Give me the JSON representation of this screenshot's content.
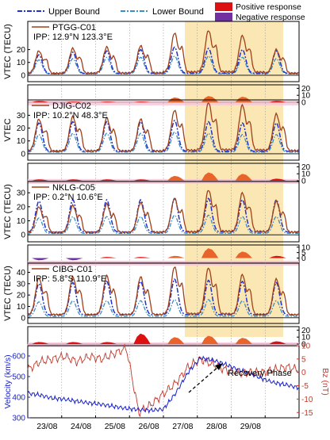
{
  "legend": {
    "upper_bound": "Upper Bound",
    "lower_bound": "Lower Bound",
    "positive": "Positive response",
    "negative": "Negative response"
  },
  "colors": {
    "vtec": "#a0401a",
    "upper": "#2233cc",
    "lower": "#3a8fc0",
    "positive": "#dd1111",
    "positive_shaded": "#e8642a",
    "negative": "#7030a0",
    "recovery_shade": "#fbe7b4",
    "velocity": "#1a22cc",
    "bz": "#c0392b",
    "residual_band": "#f6c6d8"
  },
  "chart_data": [
    {
      "type": "line",
      "station": "PTGG-C01",
      "ipp": "IPP: 12.9°N 123.3°E",
      "ylabel": "VTEC (TECU)",
      "yticks": [
        0,
        10,
        20
      ],
      "ylim": [
        -5,
        42
      ],
      "residual_yticks": [
        0,
        10,
        20
      ],
      "residual_ylim": [
        0,
        25
      ],
      "peaks": [
        19,
        21,
        22,
        23,
        33,
        35,
        31,
        20
      ],
      "upper_peaks": [
        16,
        18,
        19,
        20,
        22,
        21,
        20,
        19
      ],
      "lower_peaks": [
        12,
        13,
        14,
        14,
        15,
        15,
        14,
        13
      ],
      "residual_peaks": [
        2,
        1,
        1,
        1,
        7,
        9,
        8,
        2
      ]
    },
    {
      "type": "line",
      "station": "DJIG-C02",
      "ipp": "IPP: 10.2°N 48.3°E",
      "ylabel": "VTEC",
      "yticks": [
        0,
        10,
        20,
        30
      ],
      "ylim": [
        -5,
        42
      ],
      "residual_yticks": [
        0,
        10,
        20
      ],
      "residual_ylim": [
        0,
        25
      ],
      "peaks": [
        27,
        29,
        28,
        27,
        34,
        40,
        38,
        31
      ],
      "upper_peaks": [
        24,
        25,
        25,
        25,
        26,
        25,
        24,
        24
      ],
      "lower_peaks": [
        15,
        16,
        16,
        16,
        17,
        16,
        15,
        15
      ],
      "residual_peaks": [
        2,
        2,
        2,
        2,
        7,
        12,
        10,
        3
      ]
    },
    {
      "type": "line",
      "station": "NKLG-C05",
      "ipp": "IPP: 0.2°N 10.6°E",
      "ylabel": "VTEC (TECU)",
      "yticks": [
        0,
        10,
        20,
        30
      ],
      "ylim": [
        -5,
        38
      ],
      "residual_yticks": [
        0,
        5,
        10
      ],
      "residual_ylim": [
        -4,
        12
      ],
      "peaks": [
        20,
        21,
        22,
        23,
        26,
        32,
        30,
        24
      ],
      "upper_peaks": [
        24,
        25,
        25,
        25,
        26,
        26,
        25,
        25
      ],
      "lower_peaks": [
        12,
        13,
        13,
        13,
        14,
        14,
        13,
        13
      ],
      "residual_peaks": [
        -2,
        -2,
        1,
        1,
        2,
        9,
        6,
        2
      ]
    },
    {
      "type": "line",
      "station": "CIBG-C01",
      "ipp": "IPP: 5.8°S 110.9°E",
      "ylabel": "VTEC (TECU)",
      "yticks": [
        0,
        10,
        20,
        30,
        40
      ],
      "ylim": [
        -5,
        48
      ],
      "residual_yticks": [
        0,
        10,
        20
      ],
      "residual_ylim": [
        0,
        25
      ],
      "peaks": [
        35,
        36,
        37,
        36,
        45,
        44,
        38,
        34
      ],
      "upper_peaks": [
        30,
        31,
        32,
        32,
        34,
        33,
        32,
        31
      ],
      "lower_peaks": [
        14,
        15,
        15,
        15,
        16,
        16,
        15,
        15
      ],
      "residual_peaks": [
        3,
        3,
        3,
        15,
        10,
        12,
        9,
        4
      ]
    },
    {
      "type": "line",
      "ylabel_left": "Velocity (km/s)",
      "ylabel_right": "Bz (nT)",
      "yticks_left": [
        300,
        400,
        500,
        600
      ],
      "ylim_left": [
        300,
        650
      ],
      "yticks_right": [
        -15,
        -10,
        -5,
        0,
        5,
        10
      ],
      "ylim_right": [
        -17,
        10
      ],
      "xticks": [
        "23/08",
        "24/08",
        "25/08",
        "26/08",
        "27/08",
        "28/08",
        "29/08"
      ],
      "velocity": [
        420,
        410,
        395,
        390,
        380,
        372,
        365,
        355,
        345,
        340,
        336,
        342,
        420,
        520,
        590,
        580,
        560,
        535,
        515,
        490,
        470,
        460,
        445
      ],
      "bz": [
        1,
        4,
        5,
        6,
        4,
        6,
        5,
        7,
        9,
        -15,
        -12,
        -8,
        -4,
        2,
        5,
        3,
        1,
        0,
        0,
        0,
        1,
        2,
        1
      ],
      "annotation": "Recovery Phase"
    }
  ]
}
